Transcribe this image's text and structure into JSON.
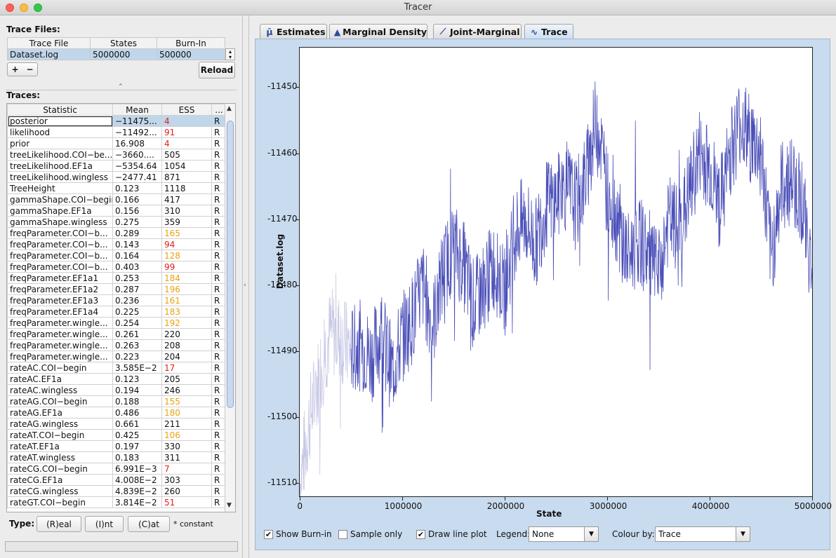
{
  "window": {
    "title": "Tracer"
  },
  "trace_files": {
    "label": "Trace Files:",
    "columns": [
      "Trace File",
      "States",
      "Burn-In"
    ],
    "rows": [
      {
        "file": "Dataset.log",
        "states": "5000000",
        "burnin": "500000"
      }
    ],
    "add_label": "+",
    "remove_label": "−",
    "reload_label": "Reload"
  },
  "traces": {
    "label": "Traces:",
    "columns": [
      "Statistic",
      "Mean",
      "ESS",
      "..."
    ],
    "rows": [
      {
        "stat": "posterior",
        "mean": "−11475...",
        "ess": "4",
        "ess_class": "red",
        "type": "R"
      },
      {
        "stat": "likelihood",
        "mean": "−11492...",
        "ess": "91",
        "ess_class": "red",
        "type": "R"
      },
      {
        "stat": "prior",
        "mean": "16.908",
        "ess": "4",
        "ess_class": "red",
        "type": "R"
      },
      {
        "stat": "treeLikelihood.COI−be...",
        "mean": "−3660....",
        "ess": "505",
        "ess_class": "",
        "type": "R"
      },
      {
        "stat": "treeLikelihood.EF1a",
        "mean": "−5354.64",
        "ess": "1054",
        "ess_class": "",
        "type": "R"
      },
      {
        "stat": "treeLikelihood.wingless",
        "mean": "−2477.41",
        "ess": "871",
        "ess_class": "",
        "type": "R"
      },
      {
        "stat": "TreeHeight",
        "mean": "0.123",
        "ess": "1118",
        "ess_class": "",
        "type": "R"
      },
      {
        "stat": "gammaShape.COI−begin",
        "mean": "0.166",
        "ess": "417",
        "ess_class": "",
        "type": "R"
      },
      {
        "stat": "gammaShape.EF1a",
        "mean": "0.156",
        "ess": "310",
        "ess_class": "",
        "type": "R"
      },
      {
        "stat": "gammaShape.wingless",
        "mean": "0.275",
        "ess": "359",
        "ess_class": "",
        "type": "R"
      },
      {
        "stat": "freqParameter.COI−b...",
        "mean": "0.289",
        "ess": "165",
        "ess_class": "orange",
        "type": "R"
      },
      {
        "stat": "freqParameter.COI−b...",
        "mean": "0.143",
        "ess": "94",
        "ess_class": "red",
        "type": "R"
      },
      {
        "stat": "freqParameter.COI−b...",
        "mean": "0.164",
        "ess": "128",
        "ess_class": "orange",
        "type": "R"
      },
      {
        "stat": "freqParameter.COI−b...",
        "mean": "0.403",
        "ess": "99",
        "ess_class": "red",
        "type": "R"
      },
      {
        "stat": "freqParameter.EF1a1",
        "mean": "0.253",
        "ess": "184",
        "ess_class": "orange",
        "type": "R"
      },
      {
        "stat": "freqParameter.EF1a2",
        "mean": "0.287",
        "ess": "196",
        "ess_class": "orange",
        "type": "R"
      },
      {
        "stat": "freqParameter.EF1a3",
        "mean": "0.236",
        "ess": "161",
        "ess_class": "orange",
        "type": "R"
      },
      {
        "stat": "freqParameter.EF1a4",
        "mean": "0.225",
        "ess": "183",
        "ess_class": "orange",
        "type": "R"
      },
      {
        "stat": "freqParameter.wingle...",
        "mean": "0.254",
        "ess": "192",
        "ess_class": "orange",
        "type": "R"
      },
      {
        "stat": "freqParameter.wingle...",
        "mean": "0.261",
        "ess": "220",
        "ess_class": "",
        "type": "R"
      },
      {
        "stat": "freqParameter.wingle...",
        "mean": "0.263",
        "ess": "208",
        "ess_class": "",
        "type": "R"
      },
      {
        "stat": "freqParameter.wingle...",
        "mean": "0.223",
        "ess": "204",
        "ess_class": "",
        "type": "R"
      },
      {
        "stat": "rateAC.COI−begin",
        "mean": "3.585E−2",
        "ess": "17",
        "ess_class": "red",
        "type": "R"
      },
      {
        "stat": "rateAC.EF1a",
        "mean": "0.123",
        "ess": "205",
        "ess_class": "",
        "type": "R"
      },
      {
        "stat": "rateAC.wingless",
        "mean": "0.194",
        "ess": "246",
        "ess_class": "",
        "type": "R"
      },
      {
        "stat": "rateAG.COI−begin",
        "mean": "0.188",
        "ess": "155",
        "ess_class": "orange",
        "type": "R"
      },
      {
        "stat": "rateAG.EF1a",
        "mean": "0.486",
        "ess": "180",
        "ess_class": "orange",
        "type": "R"
      },
      {
        "stat": "rateAG.wingless",
        "mean": "0.661",
        "ess": "211",
        "ess_class": "",
        "type": "R"
      },
      {
        "stat": "rateAT.COI−begin",
        "mean": "0.425",
        "ess": "106",
        "ess_class": "orange",
        "type": "R"
      },
      {
        "stat": "rateAT.EF1a",
        "mean": "0.197",
        "ess": "330",
        "ess_class": "",
        "type": "R"
      },
      {
        "stat": "rateAT.wingless",
        "mean": "0.183",
        "ess": "311",
        "ess_class": "",
        "type": "R"
      },
      {
        "stat": "rateCG.COI−begin",
        "mean": "6.991E−3",
        "ess": "7",
        "ess_class": "red",
        "type": "R"
      },
      {
        "stat": "rateCG.EF1a",
        "mean": "4.008E−2",
        "ess": "303",
        "ess_class": "",
        "type": "R"
      },
      {
        "stat": "rateCG.wingless",
        "mean": "4.839E−2",
        "ess": "260",
        "ess_class": "",
        "type": "R"
      },
      {
        "stat": "rateGT.COI−begin",
        "mean": "3.814E−2",
        "ess": "51",
        "ess_class": "red",
        "type": "R"
      }
    ]
  },
  "type_bar": {
    "label": "Type:",
    "real_label": "(R)eal",
    "int_label": "(I)nt",
    "cat_label": "(C)at",
    "constant_note": "* constant"
  },
  "tabs": [
    {
      "label": "Estimates",
      "icon": "mu-icon"
    },
    {
      "label": "Marginal Density",
      "icon": "density-icon"
    },
    {
      "label": "Joint-Marginal",
      "icon": "joint-marginal-icon"
    },
    {
      "label": "Trace",
      "icon": "trace-icon",
      "active": true
    }
  ],
  "chart_data": {
    "type": "line",
    "xlabel": "State",
    "ylabel": "Dataset.log",
    "xlim": [
      0,
      5000000
    ],
    "ylim": [
      -11512,
      -11444
    ],
    "x_ticks": [
      "0",
      "1000000",
      "2000000",
      "3000000",
      "4000000",
      "5000000"
    ],
    "y_ticks": [
      "-11450",
      "-11460",
      "-11470",
      "-11480",
      "-11490",
      "-11500",
      "-11510"
    ],
    "burnin_end": 500000,
    "series": [
      {
        "color": "#4b4fb8",
        "burnin_color": "#c9c9e6",
        "x": [
          0,
          100000,
          200000,
          300000,
          400000,
          500000,
          600000,
          700000,
          800000,
          900000,
          1000000,
          1100000,
          1200000,
          1300000,
          1400000,
          1500000,
          1600000,
          1700000,
          1800000,
          1900000,
          2000000,
          2100000,
          2200000,
          2300000,
          2400000,
          2500000,
          2600000,
          2700000,
          2800000,
          2900000,
          3000000,
          3100000,
          3200000,
          3300000,
          3400000,
          3500000,
          3600000,
          3700000,
          3800000,
          3900000,
          4000000,
          4100000,
          4200000,
          4300000,
          4400000,
          4500000,
          4600000,
          4700000,
          4800000,
          4900000,
          5000000
        ],
        "y": [
          -11510,
          -11500,
          -11493,
          -11487,
          -11488,
          -11490,
          -11489,
          -11491,
          -11487,
          -11493,
          -11488,
          -11485,
          -11480,
          -11486,
          -11478,
          -11474,
          -11477,
          -11483,
          -11480,
          -11477,
          -11481,
          -11472,
          -11470,
          -11474,
          -11468,
          -11467,
          -11465,
          -11468,
          -11463,
          -11454,
          -11466,
          -11470,
          -11476,
          -11473,
          -11475,
          -11479,
          -11470,
          -11472,
          -11466,
          -11460,
          -11462,
          -11468,
          -11460,
          -11455,
          -11458,
          -11460,
          -11476,
          -11465,
          -11464,
          -11467,
          -11478
        ]
      }
    ]
  },
  "controls": {
    "show_burnin_label": "Show Burn-in",
    "show_burnin_checked": "✔",
    "sample_only_label": "Sample only",
    "sample_only_checked": "",
    "draw_line_label": "Draw line plot",
    "draw_line_checked": "✔",
    "legend_label": "Legend:",
    "legend_value": "None",
    "colour_by_label": "Colour by:",
    "colour_by_value": "Trace"
  }
}
